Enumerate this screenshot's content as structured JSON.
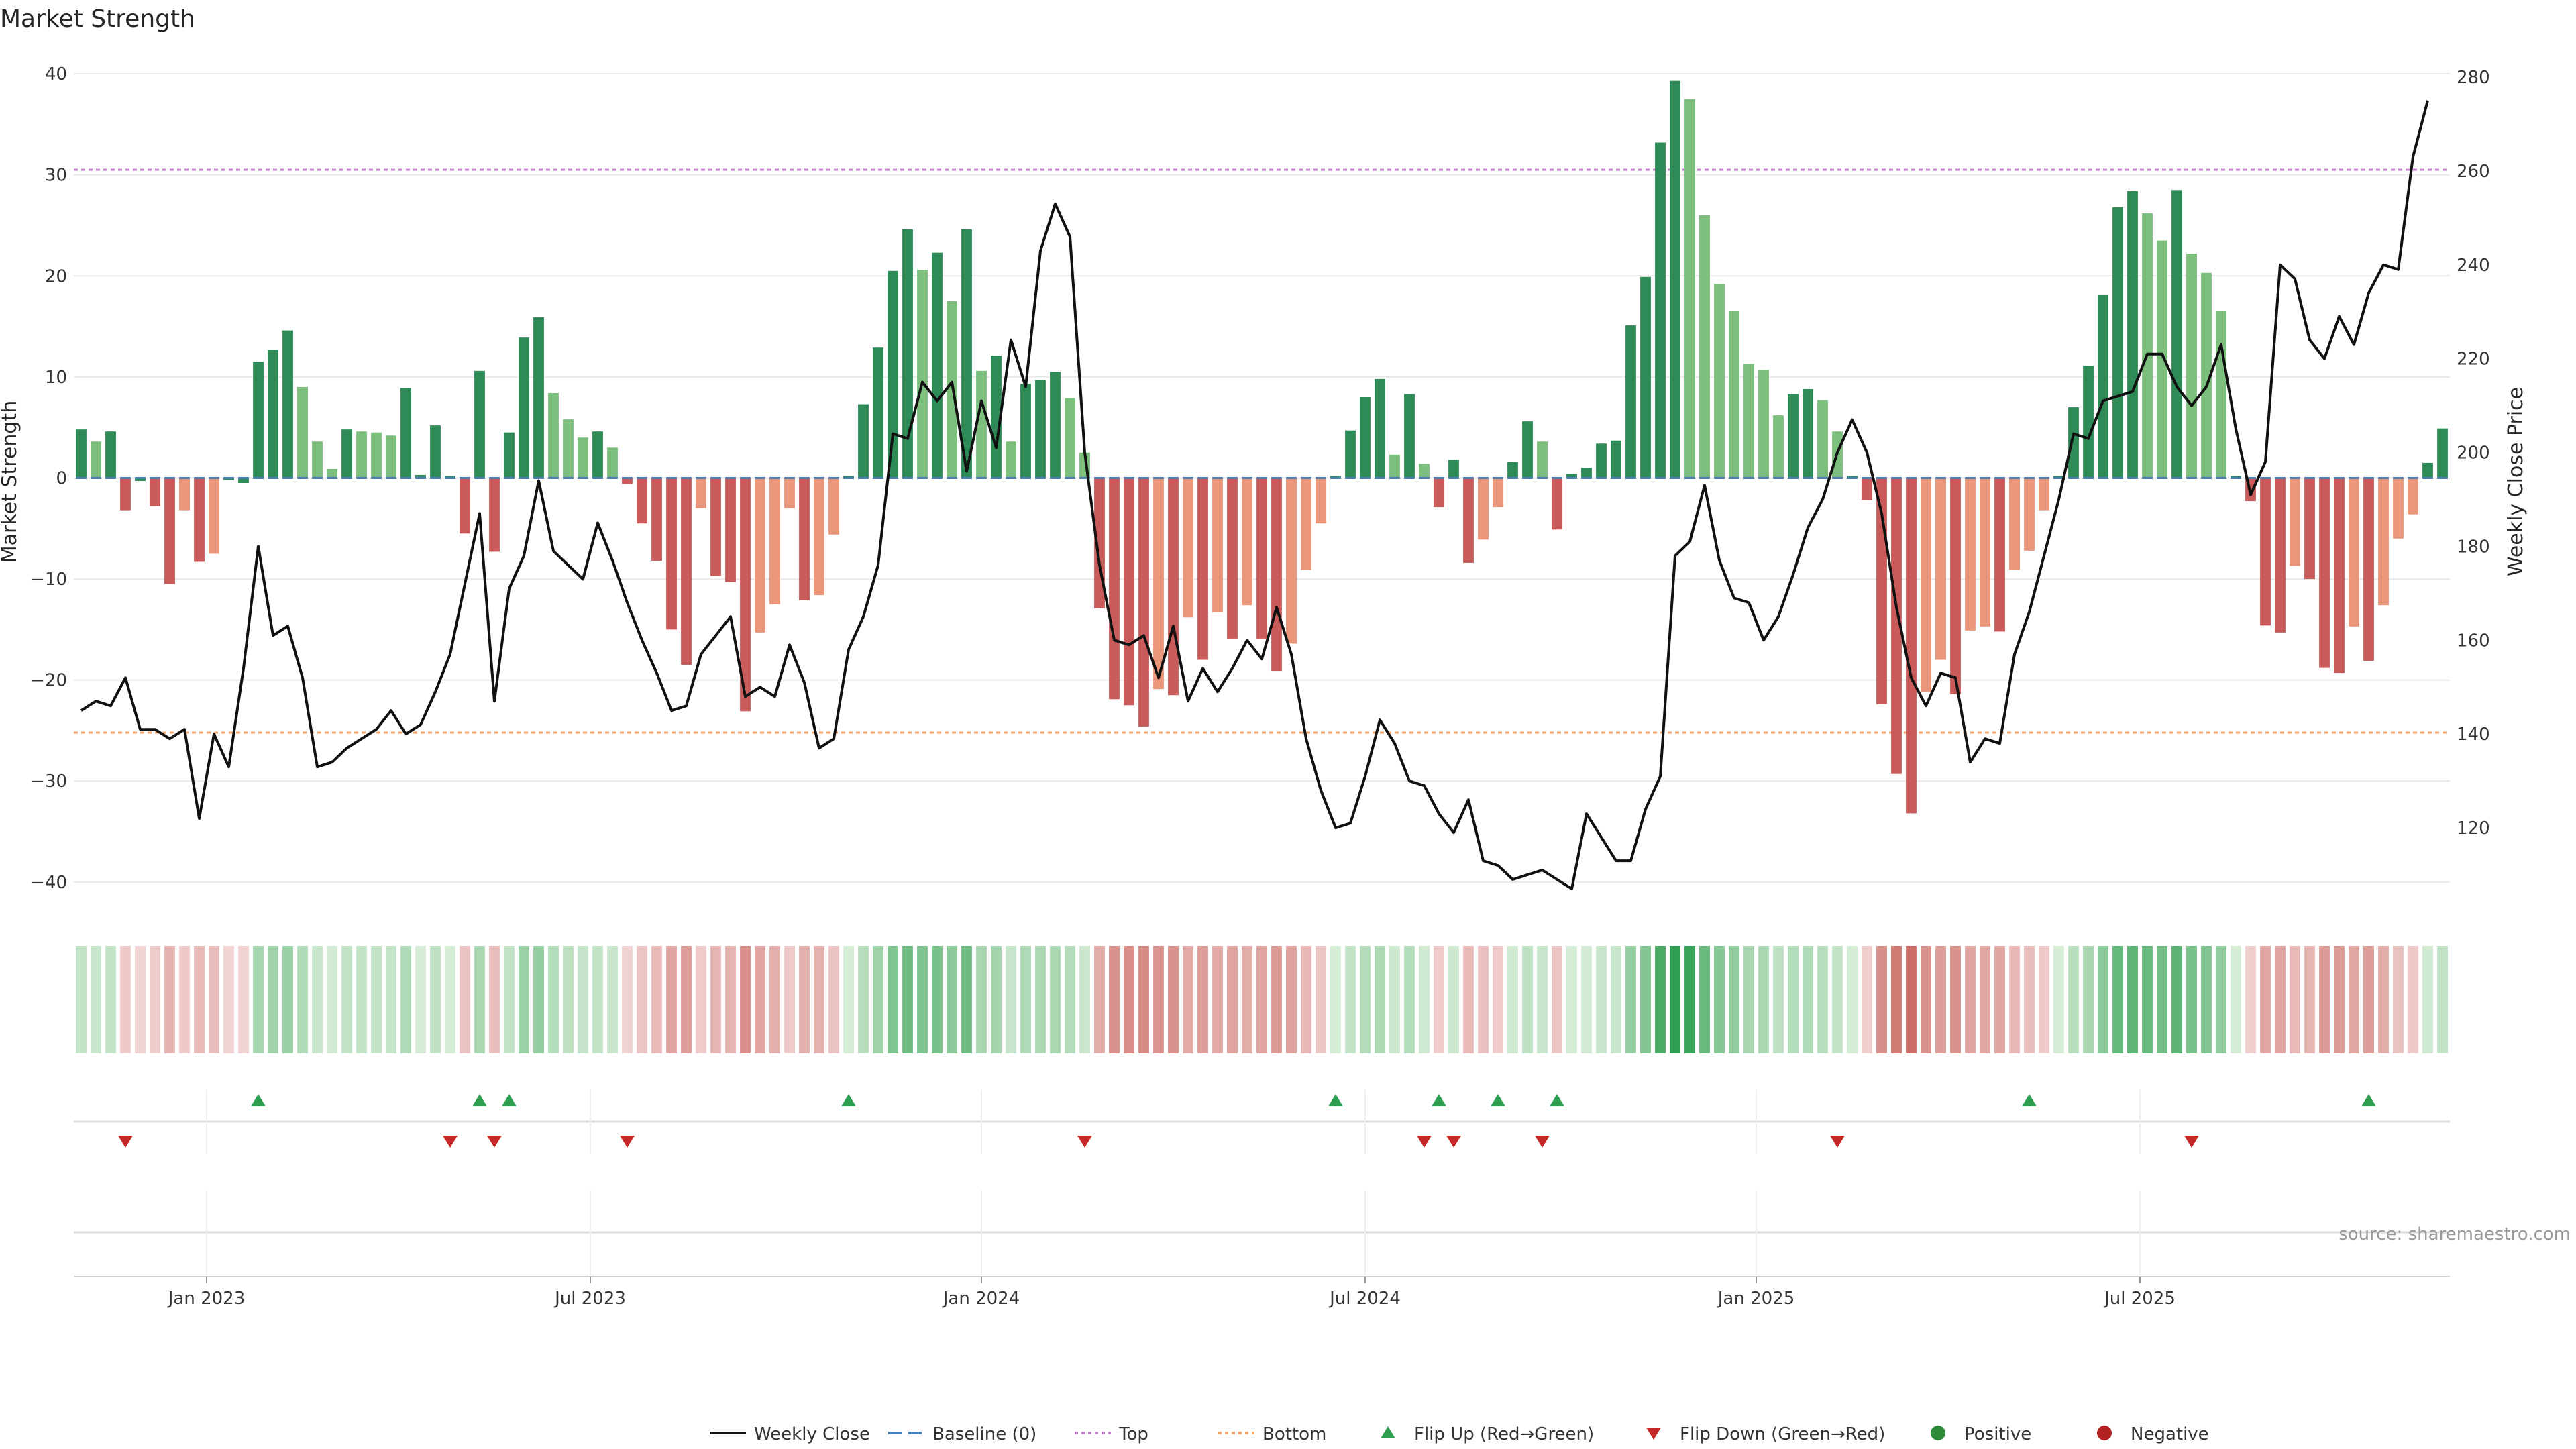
{
  "chart_data": {
    "type": "bar",
    "title": "Market Strength",
    "ylabel_left": "Market Strength",
    "ylabel_right": "Weekly Close Price",
    "ylim_left": [
      -43,
      42
    ],
    "ylim_right": [
      102,
      285
    ],
    "yticks_left": [
      "40",
      "30",
      "20",
      "10",
      "0",
      "−10",
      "−20",
      "−30",
      "−40"
    ],
    "yticks_left_values": [
      40,
      30,
      20,
      10,
      0,
      -10,
      -20,
      -30,
      -40
    ],
    "yticks_right": [
      "280",
      "260",
      "240",
      "220",
      "200",
      "180",
      "160",
      "140",
      "120"
    ],
    "yticks_right_values": [
      280,
      260,
      240,
      220,
      200,
      180,
      160,
      140,
      120
    ],
    "xticks": [
      {
        "label": "Jan 2023",
        "week": 8.5
      },
      {
        "label": "Jul 2023",
        "week": 34.5
      },
      {
        "label": "Jan 2024",
        "week": 61
      },
      {
        "label": "Jul 2024",
        "week": 87
      },
      {
        "label": "Jan 2025",
        "week": 113.5
      },
      {
        "label": "Jul 2025",
        "week": 139.5
      }
    ],
    "top_line": 30.5,
    "bottom_line": -25.2,
    "strength": [
      4.8,
      3.6,
      4.6,
      -3.2,
      -0.3,
      -2.8,
      -10.5,
      -3.2,
      -8.3,
      -7.5,
      -0.2,
      -0.5,
      11.5,
      12.7,
      14.6,
      9.0,
      3.6,
      0.9,
      4.8,
      4.6,
      4.5,
      4.2,
      8.9,
      0.3,
      5.2,
      0.2,
      -5.5,
      10.6,
      -7.3,
      4.5,
      13.9,
      15.9,
      8.4,
      5.8,
      4.0,
      4.6,
      3.0,
      -0.6,
      -4.5,
      -8.2,
      -15.0,
      -18.5,
      -3.0,
      -9.7,
      -10.3,
      -23.1,
      -15.3,
      -12.5,
      -3.0,
      -12.1,
      -11.6,
      -5.6,
      0.2,
      7.3,
      12.9,
      20.5,
      24.6,
      20.6,
      22.3,
      17.5,
      24.6,
      10.6,
      12.1,
      3.6,
      9.3,
      9.7,
      10.5,
      7.9,
      2.5,
      -12.9,
      -21.9,
      -22.5,
      -24.6,
      -20.9,
      -21.5,
      -13.8,
      -18.0,
      -13.3,
      -15.9,
      -12.6,
      -15.9,
      -19.1,
      -16.4,
      -9.1,
      -4.5,
      0.2,
      4.7,
      8.0,
      9.8,
      2.3,
      8.3,
      1.4,
      -2.9,
      1.8,
      -8.4,
      -6.1,
      -2.9,
      1.6,
      5.6,
      3.6,
      -5.1,
      0.4,
      1.0,
      3.4,
      3.7,
      15.1,
      19.9,
      33.2,
      39.3,
      37.5,
      26.0,
      19.2,
      16.5,
      11.3,
      10.7,
      6.2,
      8.3,
      8.8,
      7.7,
      4.6,
      0.2,
      -2.2,
      -22.4,
      -29.3,
      -33.2,
      -21.2,
      -18.0,
      -21.4,
      -15.1,
      -14.7,
      -15.2,
      -9.1,
      -7.2,
      -3.2,
      0.2,
      7.0,
      11.1,
      18.1,
      26.8,
      28.4,
      26.2,
      23.5,
      28.5,
      22.2,
      20.3,
      16.5,
      0.2,
      -2.3,
      -14.6,
      -15.3,
      -8.7,
      -10.0,
      -18.8,
      -19.3,
      -14.7,
      -18.1,
      -12.6,
      -6.0,
      -3.6,
      1.5,
      4.9
    ],
    "weekly_close": [
      145,
      147,
      146,
      152,
      141,
      141,
      139,
      141,
      122,
      140,
      133,
      154,
      180,
      161,
      163,
      152,
      133,
      134,
      137,
      139,
      141,
      145,
      140,
      142,
      149,
      157,
      172,
      187,
      147,
      171,
      178,
      194,
      179,
      176,
      173,
      185,
      177,
      168,
      160,
      153,
      145,
      146,
      157,
      161,
      165,
      148,
      150,
      148,
      159,
      151,
      137,
      139,
      158,
      165,
      176,
      204,
      203,
      215,
      211,
      215,
      196,
      211,
      201,
      224,
      214,
      243,
      253,
      246,
      200,
      176,
      160,
      159,
      161,
      152,
      163,
      147,
      154,
      149,
      154,
      160,
      156,
      167,
      157,
      139,
      128,
      120,
      121,
      131,
      143,
      138,
      130,
      129,
      123,
      119,
      126,
      113,
      112,
      109,
      110,
      111,
      109,
      107,
      123,
      118,
      113,
      113,
      124,
      131,
      178,
      181,
      193,
      177,
      169,
      168,
      160,
      165,
      174,
      184,
      190,
      200,
      207,
      200,
      187,
      167,
      152,
      146,
      153,
      152,
      134,
      139,
      138,
      157,
      166,
      178,
      190,
      204,
      203,
      211,
      212,
      213,
      221,
      221,
      214,
      210,
      214,
      223,
      205,
      191,
      198,
      240,
      237,
      224,
      220,
      229,
      223,
      234,
      240,
      239,
      263,
      275
    ],
    "series": [
      {
        "name": "Weekly Close",
        "color": "#111111"
      },
      {
        "name": "Baseline (0)",
        "color": "#1f77b4"
      },
      {
        "name": "Top",
        "color": "#c17fc9"
      },
      {
        "name": "Bottom",
        "color": "#f2a66d"
      }
    ],
    "flip_up_weeks": [
      12,
      27,
      29,
      52,
      85,
      92,
      96,
      100,
      132,
      155
    ],
    "flip_down_weeks": [
      3,
      25,
      28,
      37,
      68,
      91,
      93,
      99,
      119,
      143
    ],
    "legend": [
      "Weekly Close",
      "Baseline (0)",
      "Top",
      "Bottom",
      "Flip Up (Red→Green)",
      "Flip Down (Green→Red)",
      "Positive",
      "Negative"
    ],
    "legend_position": "bottom-center",
    "source": "source: sharemaestro.com",
    "colors": {
      "strong_green": "#2e8a57",
      "light_green": "#7dbf7d",
      "strong_red": "#c95b5b",
      "light_red": "#e9967a",
      "flip_up": "#2e9e4f",
      "flip_down": "#c62828",
      "positive": "#2e8b3a",
      "negative": "#b22222"
    }
  }
}
